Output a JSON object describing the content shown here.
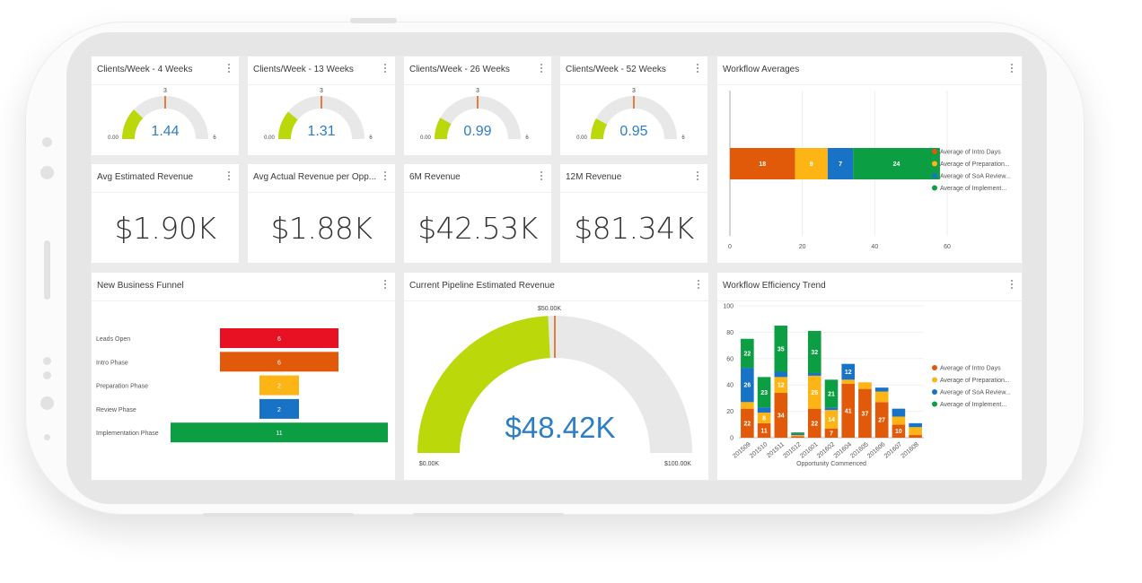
{
  "colors": {
    "intro": "#e05a0a",
    "prep": "#fdb515",
    "soa": "#1873c7",
    "impl": "#0c9e42",
    "gauge_fill": "#bad80a",
    "gauge_track": "#e8e8e8",
    "red": "#e81123",
    "value_blue": "#2e7ec6"
  },
  "gauges": [
    {
      "title": "Clients/Week - 4 Weeks",
      "value": 1.44,
      "value_label": "1.44",
      "min_label": "0.00",
      "max_label": "6",
      "target_label": "3",
      "min": 0,
      "max": 6,
      "target": 3
    },
    {
      "title": "Clients/Week - 13 Weeks",
      "value": 1.31,
      "value_label": "1.31",
      "min_label": "0.00",
      "max_label": "6",
      "target_label": "3",
      "min": 0,
      "max": 6,
      "target": 3
    },
    {
      "title": "Clients/Week - 26 Weeks",
      "value": 0.99,
      "value_label": "0.99",
      "min_label": "0.00",
      "max_label": "6",
      "target_label": "3",
      "min": 0,
      "max": 6,
      "target": 3
    },
    {
      "title": "Clients/Week - 52 Weeks",
      "value": 0.95,
      "value_label": "0.95",
      "min_label": "0.00",
      "max_label": "6",
      "target_label": "3",
      "min": 0,
      "max": 6,
      "target": 3
    }
  ],
  "kpis": [
    {
      "title": "Avg Estimated Revenue",
      "value": "$1.90K"
    },
    {
      "title": "Avg Actual Revenue per Opp...",
      "value": "$1.88K"
    },
    {
      "title": "6M Revenue",
      "value": "$42.53K"
    },
    {
      "title": "12M Revenue",
      "value": "$81.34K"
    }
  ],
  "workflow_averages": {
    "title": "Workflow Averages",
    "chart_data": {
      "type": "bar",
      "orientation": "horizontal",
      "stacked": true,
      "series": [
        {
          "name": "Average of Intro Days",
          "values": [
            18
          ]
        },
        {
          "name": "Average of Preparation...",
          "values": [
            9
          ]
        },
        {
          "name": "Average of SoA Review...",
          "values": [
            7
          ]
        },
        {
          "name": "Average of Implement...",
          "values": [
            24
          ]
        }
      ],
      "xlim": [
        0,
        60
      ],
      "x_ticks": [
        "0",
        "20",
        "40",
        "60"
      ],
      "grid": true,
      "legend": "right"
    }
  },
  "funnel": {
    "title": "New Business Funnel",
    "chart_data": {
      "type": "bar",
      "orientation": "funnel",
      "categories": [
        "Leads Open",
        "Intro Phase",
        "Preparation Phase",
        "Review Phase",
        "Implementation Phase"
      ],
      "values": [
        6,
        6,
        2,
        2,
        11
      ],
      "colors": [
        "#e81123",
        "#e05a0a",
        "#fdb515",
        "#1873c7",
        "#0c9e42"
      ]
    }
  },
  "pipeline": {
    "title": "Current Pipeline Estimated Revenue",
    "value": 48.42,
    "value_label": "$48.42K",
    "min": 0,
    "max": 100,
    "target": 50,
    "min_label": "$0.00K",
    "max_label": "$100.00K",
    "target_label": "$50.00K"
  },
  "efficiency": {
    "title": "Workflow Efficiency Trend",
    "chart_data": {
      "type": "bar",
      "stacked": true,
      "categories": [
        "201509",
        "201510",
        "201511",
        "201512",
        "201601",
        "201602",
        "201604",
        "201605",
        "201606",
        "201607",
        "201608"
      ],
      "series": [
        {
          "name": "Average of Intro Days",
          "values": [
            22,
            11,
            34,
            1,
            22,
            7,
            41,
            37,
            27,
            10,
            2
          ]
        },
        {
          "name": "Average of Preparation...",
          "values": [
            5,
            8,
            12,
            1,
            25,
            14,
            3,
            5,
            8,
            6,
            6
          ]
        },
        {
          "name": "Average of SoA Review...",
          "values": [
            26,
            4,
            4,
            1,
            2,
            2,
            12,
            0,
            3,
            6,
            3
          ]
        },
        {
          "name": "Average of Implement...",
          "values": [
            22,
            23,
            35,
            1,
            32,
            21,
            0,
            0,
            0,
            0,
            0
          ]
        }
      ],
      "labels": [
        [
          "22",
          "11",
          "34",
          "",
          "22",
          "7",
          "41",
          "37",
          "27",
          "10",
          ""
        ],
        [
          "",
          "8",
          "12",
          "",
          "25",
          "14",
          "",
          "",
          "",
          "",
          ""
        ],
        [
          "26",
          "",
          "",
          "",
          "",
          "",
          "12",
          "",
          "",
          "",
          ""
        ],
        [
          "22",
          "23",
          "35",
          "",
          "32",
          "21",
          "",
          "",
          "",
          "",
          ""
        ]
      ],
      "ylim": [
        0,
        100
      ],
      "y_ticks": [
        "0",
        "20",
        "40",
        "60",
        "80",
        "100"
      ],
      "xlabel": "Opportunity Commenced",
      "legend": "right"
    }
  }
}
